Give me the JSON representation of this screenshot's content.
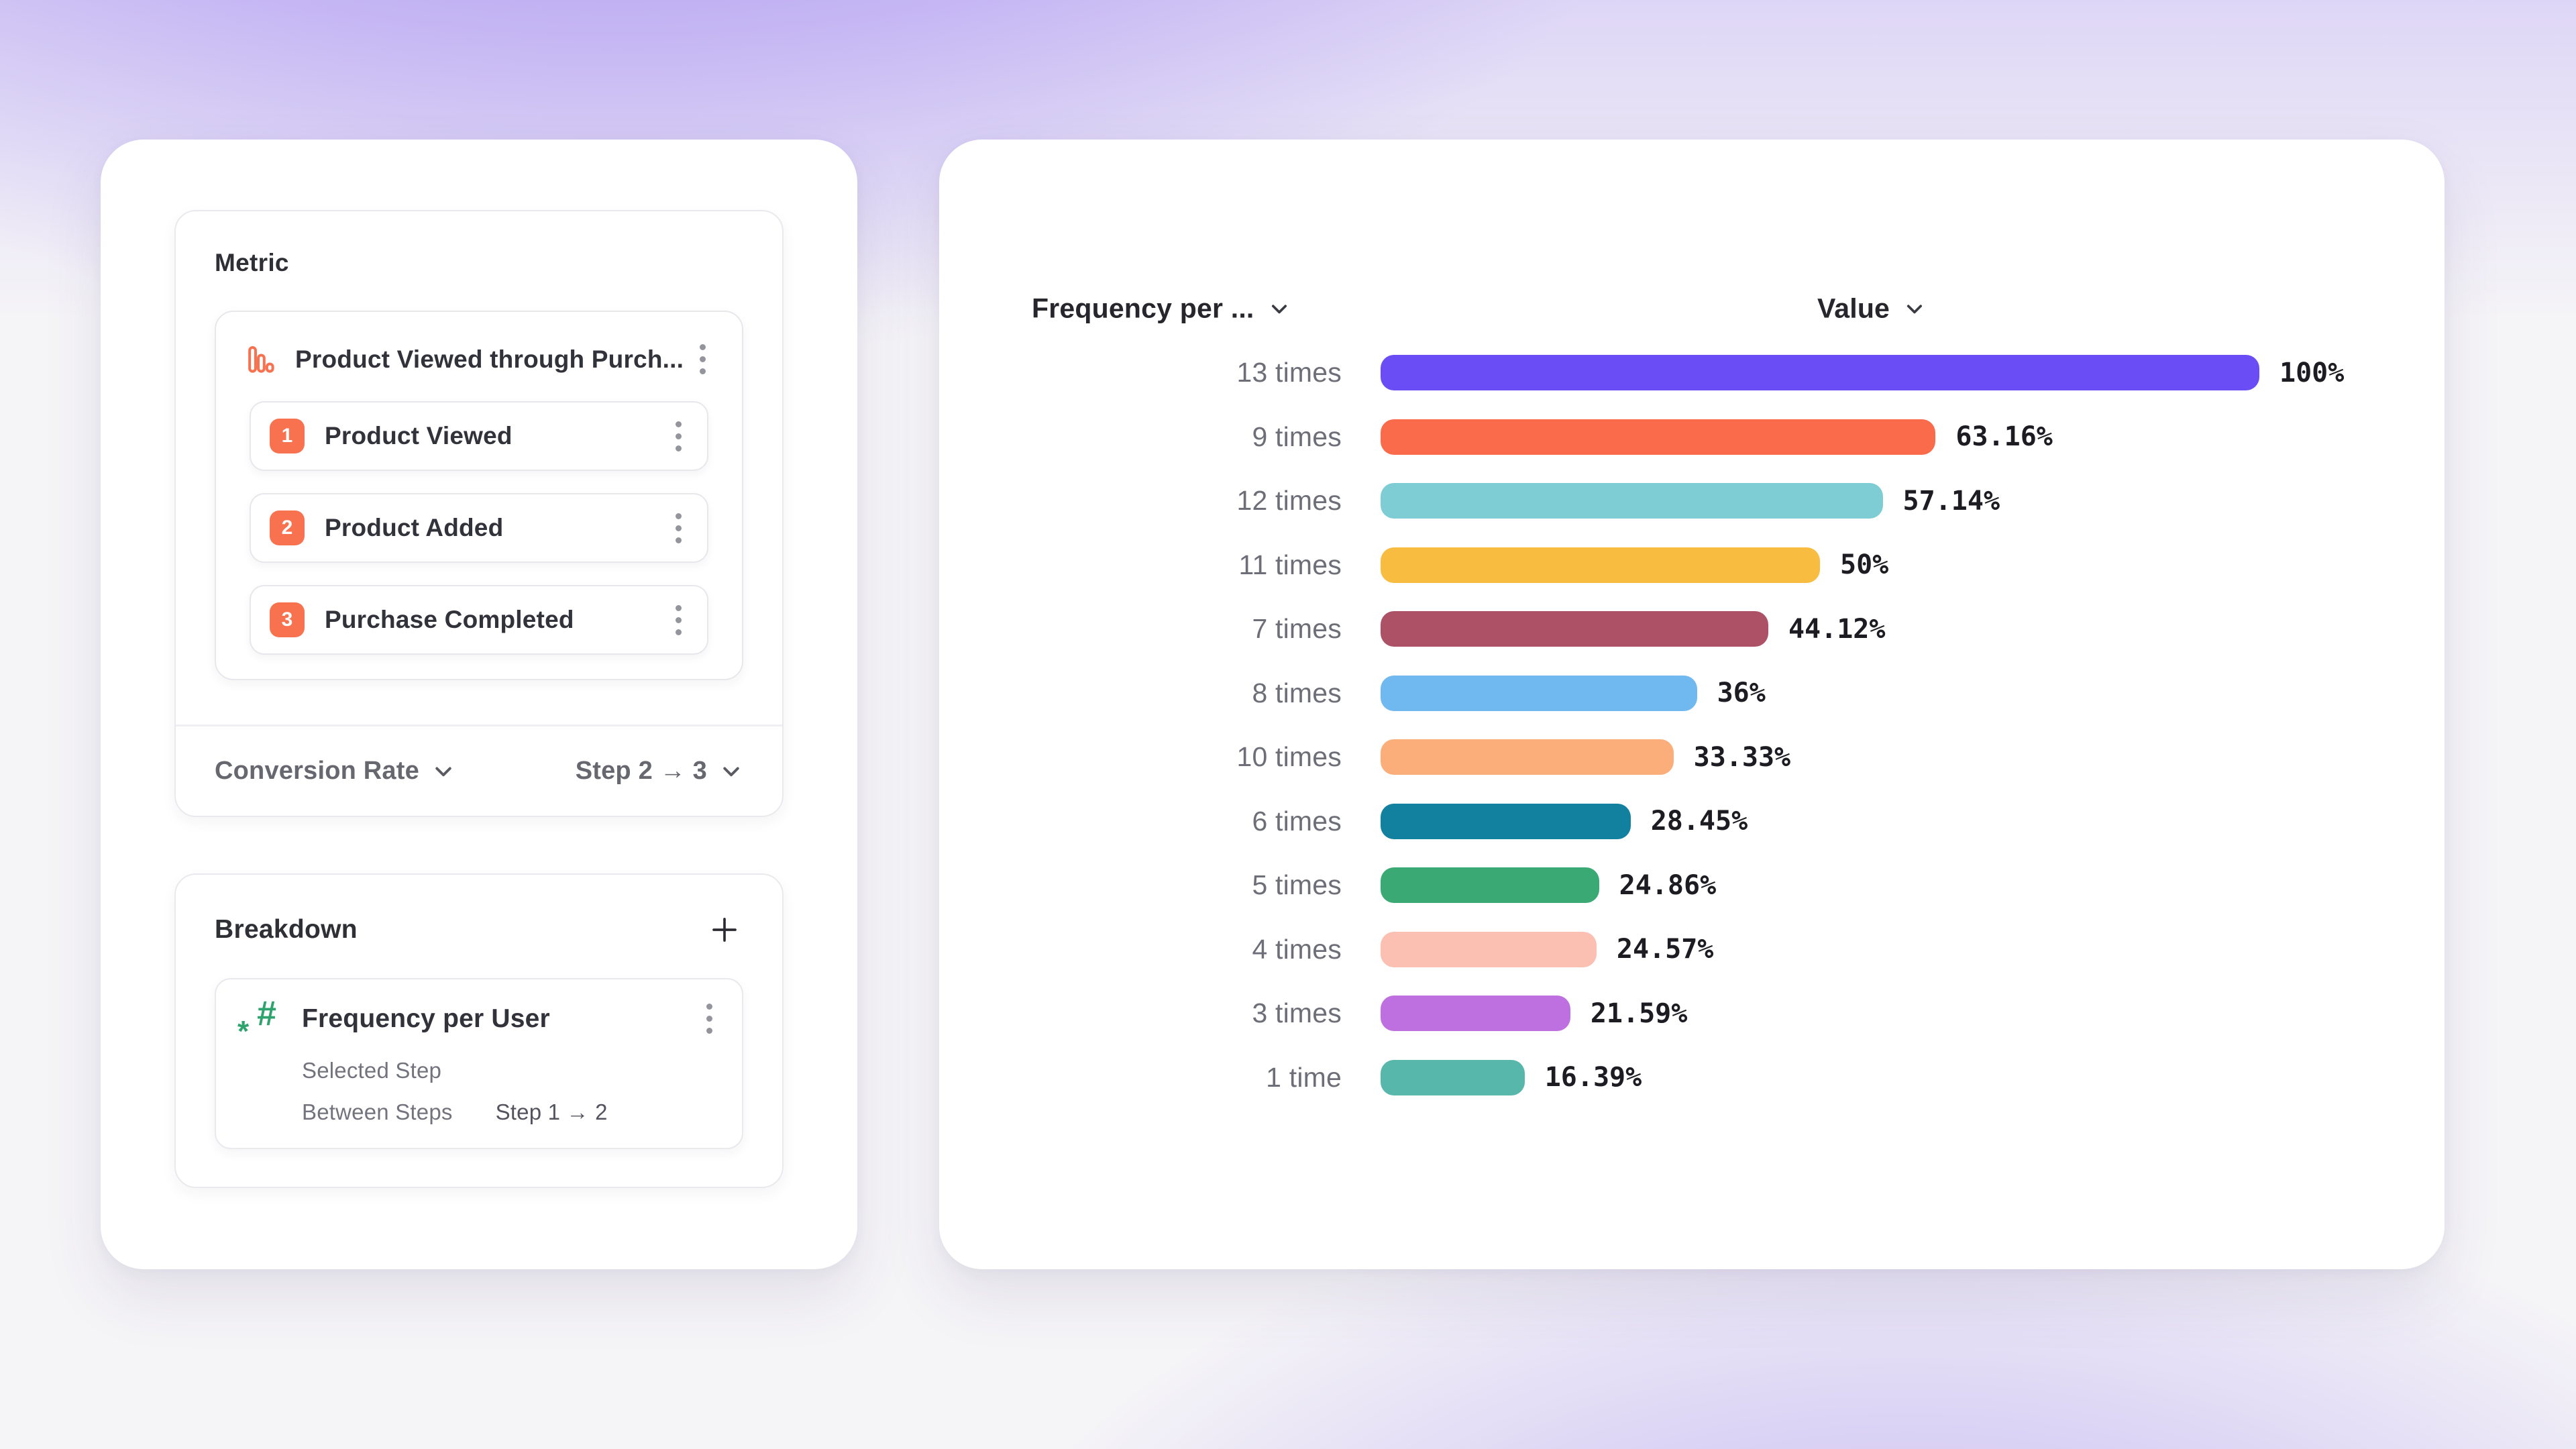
{
  "left_panel": {
    "metric_section": {
      "title": "Metric",
      "funnel": {
        "title": "Product Viewed through Purch...",
        "steps": [
          {
            "number": "1",
            "label": "Product Viewed"
          },
          {
            "number": "2",
            "label": "Product Added"
          },
          {
            "number": "3",
            "label": "Purchase Completed"
          }
        ]
      },
      "footer": {
        "conversion_label": "Conversion Rate",
        "step_range": "Step 2 → 3"
      }
    },
    "breakdown_section": {
      "title": "Breakdown",
      "item": {
        "title": "Frequency per User",
        "row1_label": "Selected Step",
        "row2_label": "Between Steps",
        "row2_value": "Step 1 → 2"
      }
    }
  },
  "chart": {
    "col1_header": "Frequency per ...",
    "col2_header": "Value"
  },
  "chart_data": {
    "type": "bar",
    "orientation": "horizontal",
    "x_header": "Frequency per ...",
    "value_header": "Value",
    "unit": "%",
    "xlim": [
      0,
      100
    ],
    "grid": false,
    "rows": [
      {
        "category": "13 times",
        "value": 100,
        "label": "100%",
        "color": "#6b4df5"
      },
      {
        "category": "9 times",
        "value": 63.16,
        "label": "63.16%",
        "color": "#fa6b4b"
      },
      {
        "category": "12 times",
        "value": 57.14,
        "label": "57.14%",
        "color": "#7ecdd5"
      },
      {
        "category": "11 times",
        "value": 50,
        "label": "50%",
        "color": "#f7bc40"
      },
      {
        "category": "7 times",
        "value": 44.12,
        "label": "44.12%",
        "color": "#ad5266"
      },
      {
        "category": "8 times",
        "value": 36,
        "label": "36%",
        "color": "#70b9f0"
      },
      {
        "category": "10 times",
        "value": 33.33,
        "label": "33.33%",
        "color": "#fbae79"
      },
      {
        "category": "6 times",
        "value": 28.45,
        "label": "28.45%",
        "color": "#12809f"
      },
      {
        "category": "5 times",
        "value": 24.86,
        "label": "24.86%",
        "color": "#3ba974"
      },
      {
        "category": "4 times",
        "value": 24.57,
        "label": "24.57%",
        "color": "#fcc0b2"
      },
      {
        "category": "3 times",
        "value": 21.59,
        "label": "21.59%",
        "color": "#bf70e0"
      },
      {
        "category": "1 time",
        "value": 16.39,
        "label": "16.39%",
        "color": "#58b7ab"
      }
    ]
  },
  "icons": {
    "metric_item": "funnel-bars",
    "breakdown_item": "hash-number",
    "menu": "kebab-vertical",
    "add": "plus",
    "dropdown": "chevron-down"
  },
  "colors": {
    "accent_coral": "#f8724f",
    "accent_green": "#2fa36d",
    "background_purple": "#7652ec"
  }
}
